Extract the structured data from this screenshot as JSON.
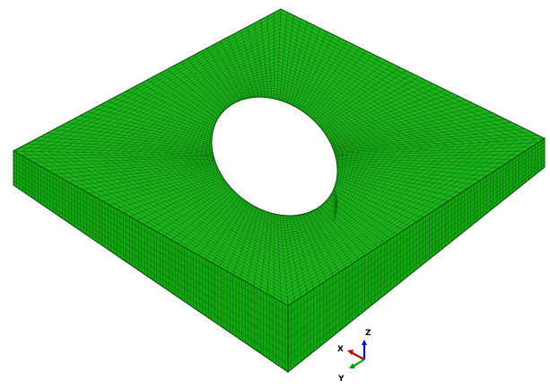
{
  "viewport": {
    "background": "#ffffff"
  },
  "model": {
    "shape": "square-plate-with-elliptical-hole",
    "mesh_color": "#1bb51b",
    "mesh_color_side": "#12a812",
    "mesh_color_hole_wall": "#1ab81a",
    "mesh_line_color": "#0a4a0a"
  },
  "triad": {
    "x_label": "X",
    "y_label": "Y",
    "z_label": "Z",
    "x_color": "#c00000",
    "y_color": "#00a000",
    "z_color": "#0000c8"
  }
}
